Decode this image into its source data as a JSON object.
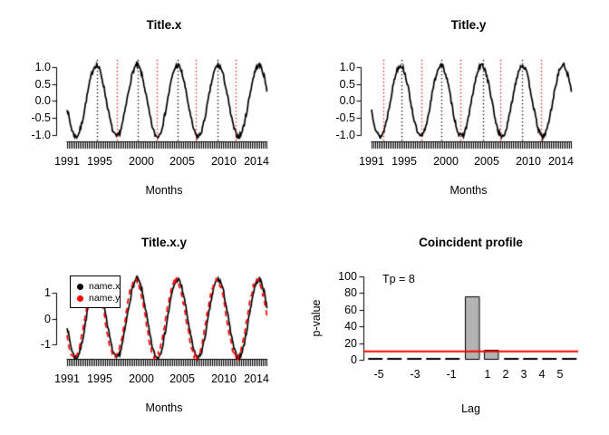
{
  "figure": {
    "background": "#ffffff",
    "accent_red": "#ff0000",
    "line_black": "#000000",
    "bar_gray": "#b3b3b3"
  },
  "chart_data": [
    {
      "type": "line",
      "title": "Title.x",
      "xlabel": "Months",
      "x_ticks": [
        {
          "year": 1991,
          "label": "1991"
        },
        {
          "year": 1995,
          "label": "1995"
        },
        {
          "year": 2000,
          "label": "2000"
        },
        {
          "year": 2005,
          "label": "2005"
        },
        {
          "year": 2010,
          "label": "2010"
        },
        {
          "year": 2014,
          "label": "2014"
        }
      ],
      "y_ticks": [
        {
          "value": 1,
          "label": "1.0"
        },
        {
          "value": 0.5,
          "label": "0.5"
        },
        {
          "value": 0,
          "label": "0.0"
        },
        {
          "value": -0.5,
          "label": "-0.5"
        },
        {
          "value": -1,
          "label": "-1.0"
        }
      ],
      "ylim": [
        -1.18,
        1.18
      ],
      "rug": {
        "start_year": 1991,
        "end_year": 2015.25,
        "frequency": "monthly"
      },
      "series": [
        {
          "name": "name.x",
          "color": "#000000",
          "style": "solid",
          "amplitude": 1.05,
          "period_years": 4.93,
          "peak_year": 1994.55,
          "start_year": 1991,
          "end_year": 2015.25,
          "points_per_year": 12,
          "noise": 0.07,
          "seed": 7
        }
      ],
      "marker_lines": [
        {
          "kind": "peak",
          "color": "#000000",
          "style": "dotted",
          "years": [
            1994.6,
            1999.6,
            2004.4,
            2009.3
          ]
        },
        {
          "kind": "trough",
          "color": "#ff0000",
          "style": "dotted",
          "years": [
            1997.0,
            2001.9,
            2006.6,
            2011.5
          ]
        }
      ]
    },
    {
      "type": "line",
      "title": "Title.y",
      "xlabel": "Months",
      "x_ticks": [
        {
          "year": 1991,
          "label": "1991"
        },
        {
          "year": 1995,
          "label": "1995"
        },
        {
          "year": 2000,
          "label": "2000"
        },
        {
          "year": 2005,
          "label": "2005"
        },
        {
          "year": 2010,
          "label": "2010"
        },
        {
          "year": 2014,
          "label": "2014"
        }
      ],
      "y_ticks": [
        {
          "value": 1,
          "label": "1.0"
        },
        {
          "value": 0.5,
          "label": "0.5"
        },
        {
          "value": 0,
          "label": "0.0"
        },
        {
          "value": -0.5,
          "label": "-0.5"
        },
        {
          "value": -1,
          "label": "-1.0"
        }
      ],
      "ylim": [
        -1.18,
        1.18
      ],
      "rug": {
        "start_year": 1991,
        "end_year": 2015.25,
        "frequency": "monthly"
      },
      "series": [
        {
          "name": "name.y",
          "color": "#000000",
          "style": "solid",
          "amplitude": 1.05,
          "period_years": 4.93,
          "peak_year": 1994.5,
          "start_year": 1991,
          "end_year": 2015.25,
          "points_per_year": 12,
          "noise": 0.07,
          "seed": 13
        }
      ],
      "marker_lines": [
        {
          "kind": "peak",
          "color": "#000000",
          "style": "dotted",
          "years": [
            1994.6,
            1999.5,
            2004.5,
            2009.3
          ]
        },
        {
          "kind": "trough",
          "color": "#ff0000",
          "style": "dotted",
          "years": [
            1992.4,
            1997.05,
            2001.8,
            2006.6,
            2011.6
          ]
        }
      ]
    },
    {
      "type": "line",
      "title": "Title.x.y",
      "xlabel": "Months",
      "x_ticks": [
        {
          "year": 1991,
          "label": "1991"
        },
        {
          "year": 1995,
          "label": "1995"
        },
        {
          "year": 2000,
          "label": "2000"
        },
        {
          "year": 2005,
          "label": "2005"
        },
        {
          "year": 2010,
          "label": "2010"
        },
        {
          "year": 2014,
          "label": "2014"
        }
      ],
      "y_ticks": [
        {
          "value": 1,
          "label": "1"
        },
        {
          "value": 0,
          "label": "0"
        },
        {
          "value": -1,
          "label": "-1"
        }
      ],
      "ylim": [
        -1.65,
        1.65
      ],
      "rug": {
        "start_year": 1991,
        "end_year": 2015.25,
        "frequency": "monthly"
      },
      "series": [
        {
          "name": "name.x",
          "color": "#000000",
          "style": "solid",
          "amplitude": 1.5,
          "period_years": 4.93,
          "peak_year": 1994.55,
          "start_year": 1991,
          "end_year": 2015.25,
          "points_per_year": 12,
          "noise": 0.09,
          "seed": 7
        },
        {
          "name": "name.y",
          "color": "#ff0000",
          "style": "dashed",
          "amplitude": 1.5,
          "period_years": 4.93,
          "peak_year": 1994.35,
          "start_year": 1991,
          "end_year": 2015.25,
          "points_per_year": 12,
          "noise": 0.09,
          "seed": 13
        }
      ],
      "marker_lines": [],
      "legend": {
        "position": "topleft",
        "items": [
          {
            "label": "name.x",
            "color": "#000000",
            "dot_css": "background:#000000"
          },
          {
            "label": "name.y",
            "color": "#ff0000",
            "dot_css": "background:#ff0000"
          }
        ]
      }
    },
    {
      "type": "bar",
      "title": "Coincident profile",
      "xlabel": "Lag",
      "ylabel": "p-value",
      "annotation": "Tp = 8",
      "lags": [
        -5,
        -4,
        -3,
        -2,
        -1,
        0,
        1,
        2,
        3,
        4,
        5
      ],
      "values": [
        1,
        1,
        1,
        1,
        2,
        76,
        12,
        2,
        1,
        1,
        1
      ],
      "bar_fill": "#b3b3b3",
      "bar_border": "#000000",
      "x_ticks": [
        {
          "lag": -5,
          "label": "-5"
        },
        {
          "lag": -3,
          "label": "-3"
        },
        {
          "lag": -1,
          "label": "-1"
        },
        {
          "lag": 1,
          "label": "1"
        },
        {
          "lag": 2,
          "label": "2"
        },
        {
          "lag": 3,
          "label": "3"
        },
        {
          "lag": 4,
          "label": "4"
        },
        {
          "lag": 5,
          "label": "5"
        }
      ],
      "y_ticks": [
        0,
        20,
        40,
        60,
        80,
        100
      ],
      "ylim": [
        0,
        100
      ],
      "threshold_line": {
        "value": 10,
        "color": "#ff0000"
      }
    }
  ]
}
